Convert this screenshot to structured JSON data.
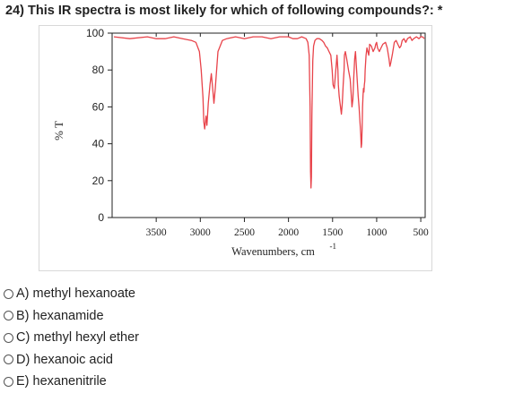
{
  "question": {
    "text": "24) This IR spectra is most likely for which of following compounds?: *"
  },
  "chart_data": {
    "type": "line",
    "xlabel": "Wavenumbers, cm",
    "xlabel_exponent": "-1",
    "ylabel": "% T",
    "x_ticks": [
      3500,
      3000,
      2500,
      2000,
      1500,
      1000,
      500
    ],
    "y_ticks": [
      0,
      20,
      40,
      60,
      80,
      100
    ],
    "xlim": [
      4000,
      450
    ],
    "ylim": [
      0,
      100
    ],
    "x_reversed": true,
    "line_color": "#e8434a",
    "series": [
      {
        "x": [
          3980,
          3800,
          3600,
          3500,
          3400,
          3300,
          3200,
          3100,
          3050,
          3010,
          2990,
          2970,
          2960,
          2950,
          2935,
          2925,
          2910,
          2890,
          2875,
          2860,
          2845,
          2830,
          2800,
          2750,
          2700,
          2600,
          2500,
          2400,
          2300,
          2200,
          2100,
          2000,
          1950,
          1900,
          1850,
          1800,
          1780,
          1765,
          1755,
          1750,
          1745,
          1740,
          1735,
          1725,
          1715,
          1700,
          1680,
          1650,
          1620,
          1600,
          1580,
          1560,
          1540,
          1520,
          1505,
          1495,
          1480,
          1470,
          1460,
          1450,
          1440,
          1435,
          1425,
          1410,
          1400,
          1390,
          1380,
          1370,
          1365,
          1355,
          1340,
          1320,
          1300,
          1290,
          1280,
          1270,
          1260,
          1250,
          1240,
          1230,
          1220,
          1210,
          1200,
          1190,
          1180,
          1175,
          1170,
          1165,
          1160,
          1155,
          1150,
          1145,
          1140,
          1135,
          1130,
          1120,
          1110,
          1100,
          1090,
          1080,
          1060,
          1040,
          1020,
          1010,
          1000,
          990,
          970,
          950,
          930,
          900,
          880,
          860,
          850,
          840,
          820,
          800,
          780,
          760,
          740,
          725,
          710,
          690,
          670,
          650,
          620,
          600,
          580,
          550,
          520,
          500,
          480,
          460
        ],
        "y": [
          98,
          97,
          98,
          97,
          97,
          98,
          97,
          96,
          95,
          90,
          80,
          65,
          52,
          48,
          55,
          50,
          62,
          72,
          78,
          70,
          62,
          70,
          90,
          96,
          97,
          98,
          97,
          98,
          98,
          97,
          98,
          98,
          97,
          97,
          98,
          97,
          95,
          88,
          60,
          25,
          16,
          22,
          55,
          85,
          93,
          96,
          97,
          97,
          96,
          95,
          93,
          92,
          90,
          88,
          80,
          72,
          70,
          76,
          82,
          88,
          80,
          72,
          66,
          60,
          56,
          62,
          72,
          80,
          88,
          90,
          86,
          80,
          75,
          68,
          60,
          64,
          76,
          86,
          90,
          82,
          74,
          66,
          60,
          52,
          45,
          38,
          40,
          48,
          60,
          66,
          70,
          68,
          72,
          74,
          80,
          88,
          92,
          90,
          88,
          94,
          93,
          90,
          92,
          94,
          95,
          92,
          90,
          92,
          94,
          95,
          92,
          86,
          82,
          84,
          89,
          95,
          96,
          94,
          92,
          93,
          96,
          97,
          95,
          97,
          98,
          96,
          97,
          98,
          97,
          98,
          98,
          97
        ]
      }
    ]
  },
  "options": [
    {
      "label": "A) methyl hexanoate"
    },
    {
      "label": "B) hexanamide"
    },
    {
      "label": "C) methyl hexyl ether"
    },
    {
      "label": "D) hexanoic acid"
    },
    {
      "label": "E) hexanenitrile"
    }
  ]
}
